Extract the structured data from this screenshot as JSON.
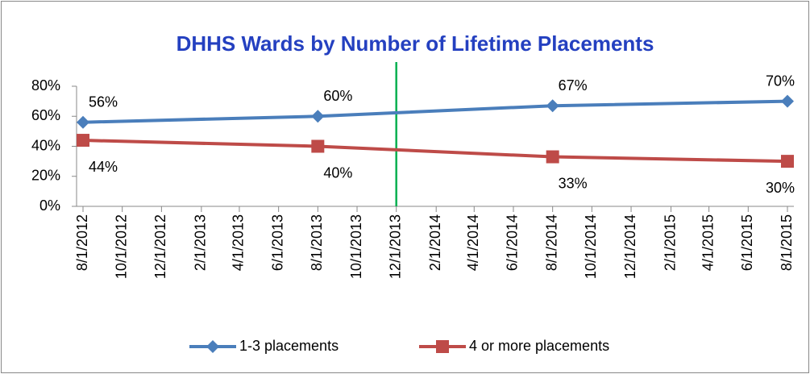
{
  "chart_data": {
    "type": "line",
    "title": "DHHS Wards by Number of Lifetime Placements",
    "title_color": "#2440c0",
    "x": [
      "8/1/2012",
      "8/1/2013",
      "8/1/2014",
      "8/1/2015"
    ],
    "xlim": [
      "8/1/2012",
      "8/1/2015"
    ],
    "xticks": [
      "8/1/2012",
      "10/1/2012",
      "12/1/2012",
      "2/1/2013",
      "4/1/2013",
      "6/1/2013",
      "8/1/2013",
      "10/1/2013",
      "12/1/2013",
      "2/1/2014",
      "4/1/2014",
      "6/1/2014",
      "8/1/2014",
      "10/1/2014",
      "12/1/2014",
      "2/1/2015",
      "4/1/2015",
      "6/1/2015",
      "8/1/2015"
    ],
    "ylim": [
      0,
      80
    ],
    "yticks": [
      {
        "value": 0,
        "label": "0%"
      },
      {
        "value": 20,
        "label": "20%"
      },
      {
        "value": 40,
        "label": "40%"
      },
      {
        "value": 60,
        "label": "60%"
      },
      {
        "value": 80,
        "label": "80%"
      }
    ],
    "grid": false,
    "legend": "bottom",
    "reference_line": {
      "x": "12/1/2013",
      "color": "#00b050"
    },
    "series": [
      {
        "name": "1-3 placements",
        "color": "#4a7ebb",
        "marker": "diamond",
        "values": [
          56,
          60,
          67,
          70
        ],
        "value_labels": [
          "56%",
          "60%",
          "67%",
          "70%"
        ]
      },
      {
        "name": "4 or more placements",
        "color": "#be4b48",
        "marker": "square",
        "values": [
          44,
          40,
          33,
          30
        ],
        "value_labels": [
          "44%",
          "40%",
          "33%",
          "30%"
        ]
      }
    ]
  }
}
